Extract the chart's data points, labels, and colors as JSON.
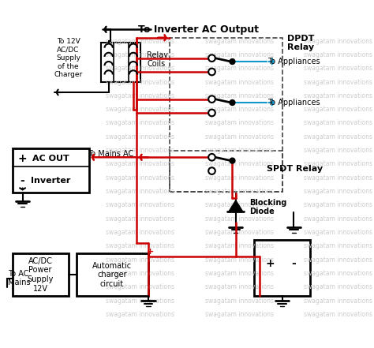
{
  "title": "To Inverter AC Output",
  "bg_color": "#ffffff",
  "watermark_color": "#cccccc",
  "watermark_text": "swagatam innovations",
  "labels": {
    "to_12v": "To 12V\nAC/DC\nSupply\nof the\nCharger",
    "relay_coils": "Relay\nCoils",
    "dpdt_relay": "DPDT\nRelay",
    "to_appliances": "To Appliances",
    "to_mains_ac": "To Mains AC",
    "spdt_relay": "SPDT Relay",
    "ac_out": "AC OUT",
    "inverter": "Inverter",
    "plus": "+",
    "minus": "-",
    "blocking_diode": "Blocking\nDiode",
    "acdc_power": "AC/DC\nPower\nSupply\n12V",
    "auto_charger": "Automatic\ncharger\ncircuit",
    "to_ac_mains": "To AC\nMains"
  },
  "wire_red": "#cc0000",
  "wire_black": "#000000",
  "wire_blue": "#1199cc"
}
